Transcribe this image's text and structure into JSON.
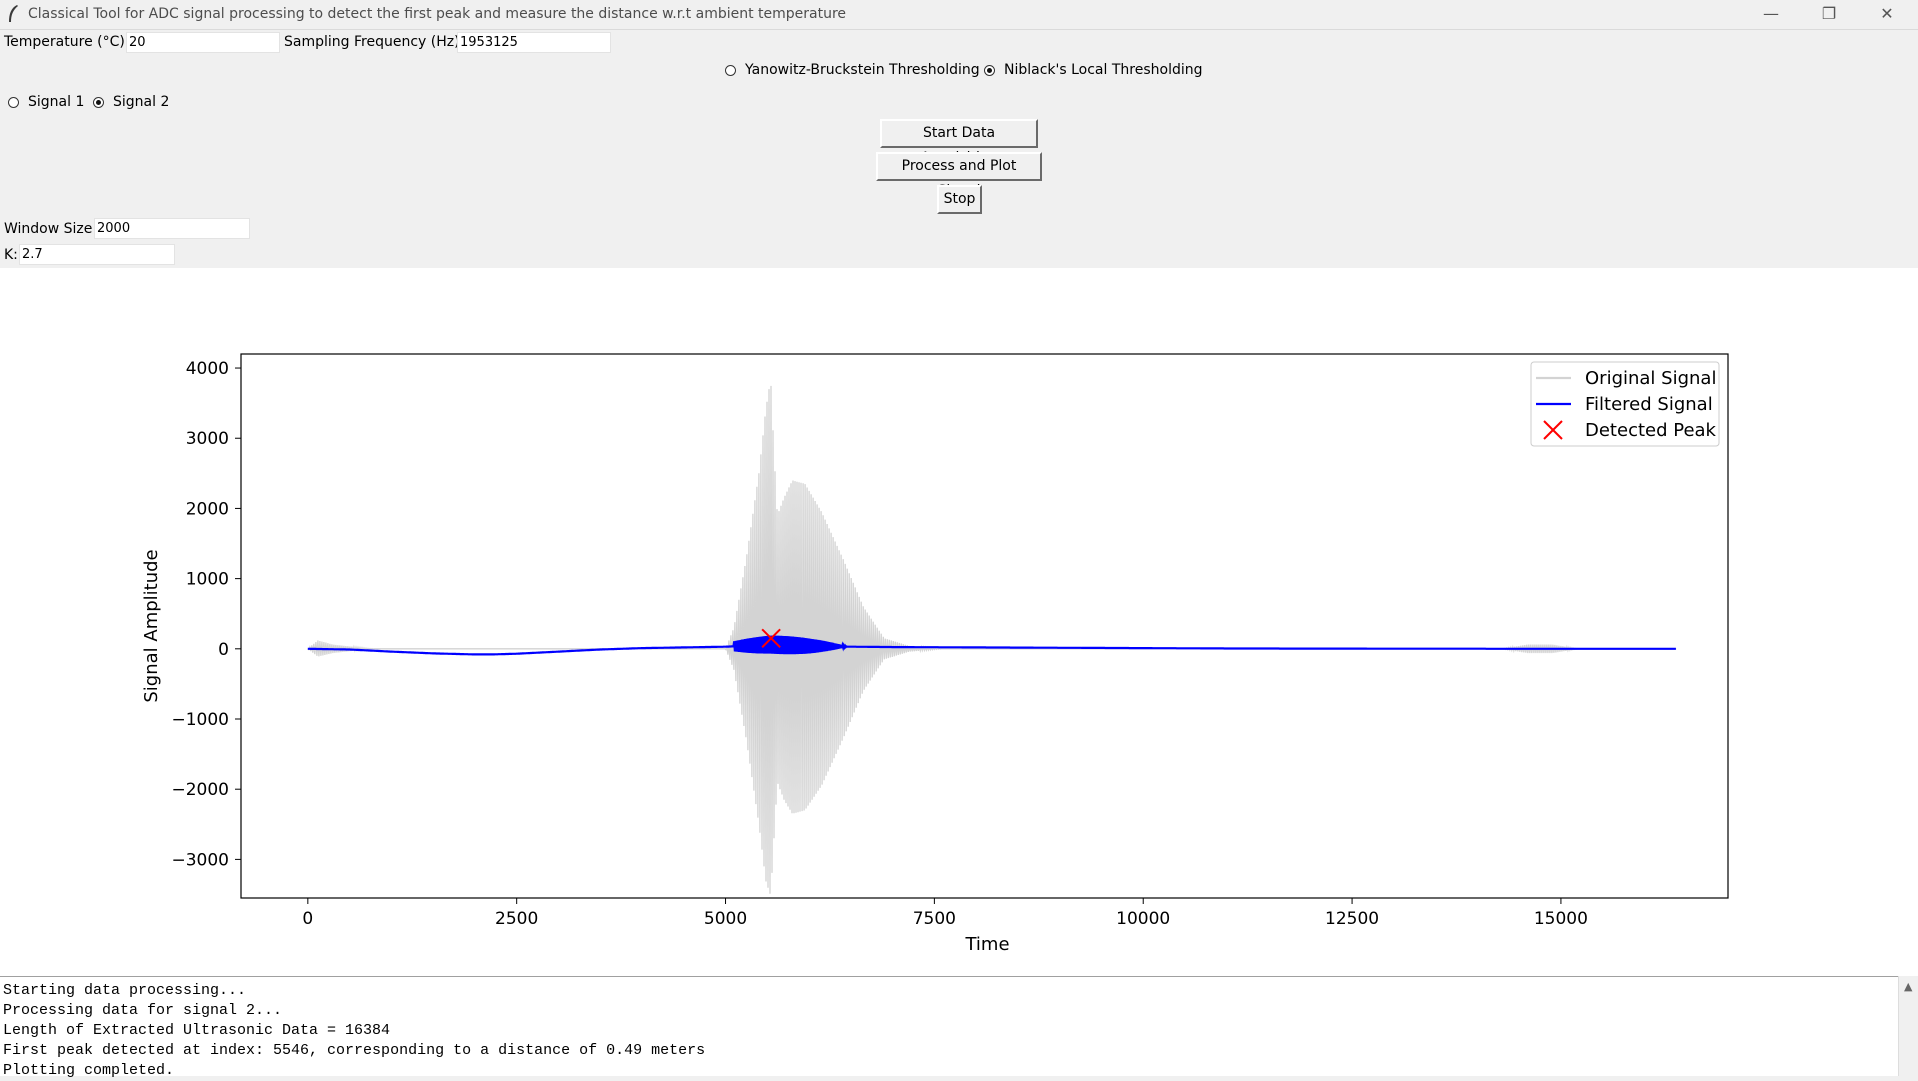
{
  "window": {
    "title": "Classical Tool for ADC signal processing to detect the first peak and measure the distance w.r.t ambient temperature",
    "controls": {
      "minimize": "—",
      "maximize": "❐",
      "close": "✕"
    }
  },
  "form": {
    "temperature_label": "Temperature (°C):",
    "temperature_value": "20",
    "sampling_label": "Sampling Frequency (Hz):",
    "sampling_value": "1953125",
    "window_size_label": "Window Size:",
    "window_size_value": "2000",
    "k_label": "K:",
    "k_value": "2.7"
  },
  "threshold_options": [
    {
      "label": "Yanowitz-Bruckstein Thresholding",
      "selected": false
    },
    {
      "label": "Niblack's Local Thresholding",
      "selected": true
    }
  ],
  "signal_options": [
    {
      "label": "Signal 1",
      "selected": false
    },
    {
      "label": "Signal 2",
      "selected": true
    }
  ],
  "buttons": {
    "start": "Start Data Acquisition",
    "process": "Process and Plot Signal",
    "stop": "Stop"
  },
  "chart_data": {
    "type": "line",
    "xlabel": "Time",
    "ylabel": "Signal Amplitude",
    "xlim": [
      -800,
      17000
    ],
    "ylim": [
      -3550,
      4200
    ],
    "xticks": [
      0,
      2500,
      5000,
      7500,
      10000,
      12500,
      15000
    ],
    "yticks": [
      4000,
      3000,
      2000,
      1000,
      0,
      -1000,
      -2000,
      -3000
    ],
    "ytick_labels": [
      "4000",
      "3000",
      "2000",
      "1000",
      "0",
      "−1000",
      "−2000",
      "−3000"
    ],
    "legend": {
      "position": "top-right"
    },
    "series": [
      {
        "name": "Original Signal",
        "color": "#d3d3d3",
        "envelope": {
          "x": [
            0,
            120,
            300,
            600,
            800,
            5000,
            5100,
            5250,
            5400,
            5480,
            5540,
            5580,
            5620,
            5700,
            5800,
            5950,
            6150,
            6400,
            6650,
            6900,
            7200,
            7600,
            14300,
            14600,
            14900,
            15200,
            16383
          ],
          "max": [
            0,
            120,
            60,
            20,
            0,
            0,
            300,
            1300,
            2500,
            3400,
            3850,
            2800,
            1900,
            2150,
            2400,
            2350,
            1950,
            1300,
            600,
            150,
            40,
            0,
            0,
            60,
            60,
            0,
            0
          ],
          "min": [
            0,
            -110,
            -60,
            -20,
            0,
            0,
            -300,
            -1300,
            -2500,
            -3300,
            -3520,
            -2700,
            -1900,
            -2150,
            -2350,
            -2300,
            -1950,
            -1300,
            -600,
            -150,
            -40,
            0,
            0,
            -60,
            -60,
            0,
            0
          ]
        }
      },
      {
        "name": "Filtered Signal",
        "color": "#0000ff",
        "x": [
          0,
          500,
          1000,
          1500,
          2000,
          2200,
          2500,
          3000,
          3500,
          4000,
          4500,
          5000,
          5546,
          6000,
          6500,
          7000,
          8000,
          9000,
          10000,
          11000,
          12000,
          13000,
          14000,
          15000,
          16383
        ],
        "y": [
          0,
          -10,
          -40,
          -65,
          -80,
          -80,
          -70,
          -40,
          -10,
          10,
          20,
          30,
          60,
          40,
          30,
          25,
          20,
          15,
          10,
          5,
          3,
          2,
          1,
          0,
          0
        ],
        "burst": {
          "x_start": 5100,
          "x_end": 6900,
          "amplitude": 130
        }
      },
      {
        "name": "Detected Peak",
        "color": "#ff0000",
        "marker": "x",
        "points": [
          {
            "x": 5546,
            "y": 150
          }
        ]
      }
    ]
  },
  "console": [
    "Starting data processing...",
    "Processing data for signal 2...",
    "Length of Extracted Ultrasonic Data = 16384",
    "First peak detected at index: 5546, corresponding to a distance of 0.49 meters",
    "Plotting completed."
  ]
}
